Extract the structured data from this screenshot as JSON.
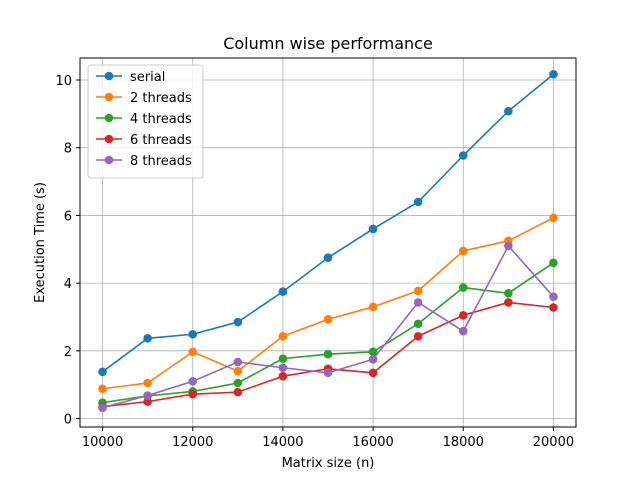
{
  "chart_data": {
    "type": "line",
    "title": "Column wise performance",
    "xlabel": "Matrix size (n)",
    "ylabel": "Execution Time (s)",
    "x": [
      10000,
      11000,
      12000,
      13000,
      14000,
      15000,
      16000,
      17000,
      18000,
      19000,
      20000
    ],
    "xlim": [
      9500,
      20500
    ],
    "ylim": [
      -0.25,
      10.65
    ],
    "xticks": [
      10000,
      12000,
      14000,
      16000,
      18000,
      20000
    ],
    "yticks": [
      0,
      2,
      4,
      6,
      8,
      10
    ],
    "grid": true,
    "legend_position": "top-left",
    "series": [
      {
        "name": "serial",
        "color": "#1f77b4",
        "values": [
          1.38,
          2.37,
          2.49,
          2.85,
          3.75,
          4.75,
          5.6,
          6.4,
          7.77,
          9.08,
          10.17
        ]
      },
      {
        "name": "2 threads",
        "color": "#ff7f0e",
        "values": [
          0.88,
          1.05,
          1.97,
          1.4,
          2.43,
          2.93,
          3.3,
          3.77,
          4.95,
          5.25,
          5.93
        ]
      },
      {
        "name": "4 threads",
        "color": "#2ca02c",
        "values": [
          0.47,
          0.67,
          0.8,
          1.05,
          1.77,
          1.9,
          1.97,
          2.8,
          3.87,
          3.7,
          4.6
        ]
      },
      {
        "name": "6 threads",
        "color": "#d62728",
        "values": [
          0.35,
          0.5,
          0.72,
          0.78,
          1.25,
          1.47,
          1.35,
          2.43,
          3.05,
          3.43,
          3.28
        ]
      },
      {
        "name": "8 threads",
        "color": "#9467bd",
        "values": [
          0.32,
          0.68,
          1.1,
          1.67,
          1.5,
          1.35,
          1.75,
          3.43,
          2.58,
          5.1,
          3.6
        ]
      }
    ]
  }
}
